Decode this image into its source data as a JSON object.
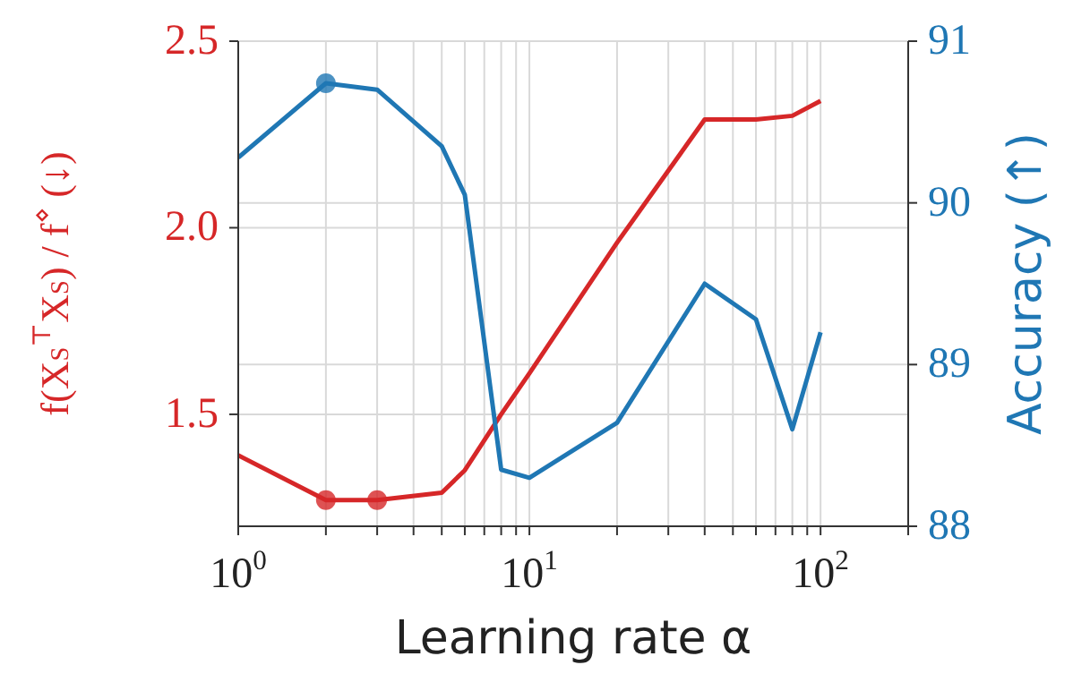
{
  "chart_data": {
    "type": "line",
    "xlabel": "Learning rate α",
    "ylabel": "f(X$_{S}$$^{⊤}$X$_{S}$) / f$^{⋄}$ (↓)",
    "y2label": "Accuracy (↑)",
    "log": "x",
    "grid": true,
    "xlim": [
      1,
      200
    ],
    "xticks": [
      {
        "value": 1,
        "label": "10$^{0}$"
      },
      {
        "value": 2,
        "label": null
      },
      {
        "value": 3,
        "label": null
      },
      {
        "value": 4,
        "label": null
      },
      {
        "value": 5,
        "label": null
      },
      {
        "value": 6,
        "label": null
      },
      {
        "value": 7,
        "label": null
      },
      {
        "value": 8,
        "label": null
      },
      {
        "value": 9,
        "label": null
      },
      {
        "value": 10,
        "label": "10$^{1}$"
      },
      {
        "value": 20,
        "label": null
      },
      {
        "value": 30,
        "label": null
      },
      {
        "value": 40,
        "label": null
      },
      {
        "value": 50,
        "label": null
      },
      {
        "value": 60,
        "label": null
      },
      {
        "value": 70,
        "label": null
      },
      {
        "value": 80,
        "label": null
      },
      {
        "value": 90,
        "label": null
      },
      {
        "value": 100,
        "label": "10$^{2}$"
      },
      {
        "value": 200,
        "label": null
      }
    ],
    "ylim": [
      1.2,
      2.5
    ],
    "yticks": [
      {
        "value": 1.5,
        "label": "1.5"
      },
      {
        "value": 2.0,
        "label": "2.0"
      },
      {
        "value": 2.5,
        "label": "2.5"
      }
    ],
    "y2lim": [
      88,
      91
    ],
    "y2ticks": [
      88,
      89,
      90,
      91
    ],
    "series": [
      {
        "color": "#d62728",
        "x": [
          1,
          2,
          3,
          5,
          6,
          8,
          10,
          20,
          40,
          60,
          80,
          100
        ],
        "values": [
          1.39,
          1.27,
          1.27,
          1.29,
          1.35,
          1.5,
          1.61,
          1.96,
          2.29,
          2.29,
          2.3,
          2.34
        ]
      },
      {
        "color": "#1f77b4",
        "axis": "y2",
        "x": [
          1,
          2,
          3,
          5,
          6,
          8,
          10,
          20,
          40,
          60,
          80,
          100
        ],
        "values": [
          90.28,
          90.74,
          90.7,
          90.35,
          90.05,
          88.35,
          88.3,
          88.64,
          89.5,
          89.28,
          88.6,
          89.2
        ]
      },
      {
        "type": "scatter",
        "color": "#d62728",
        "x": [
          2,
          3
        ],
        "values": [
          1.27,
          1.27
        ]
      },
      {
        "type": "scatter",
        "color": "#1f77b4",
        "axis": "y2",
        "x": [
          2
        ],
        "values": [
          90.74
        ]
      }
    ]
  }
}
